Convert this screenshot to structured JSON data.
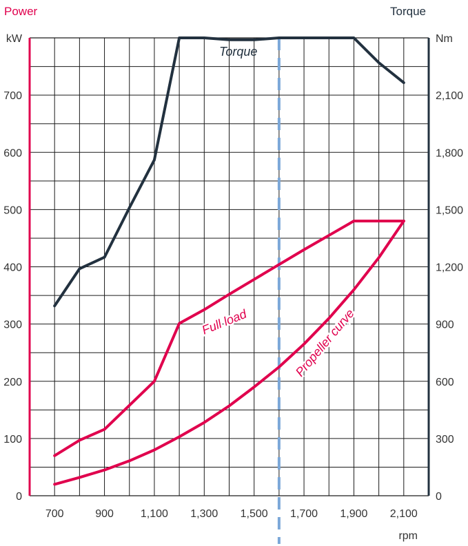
{
  "chart_data": {
    "type": "line",
    "left_axis_title": "Power",
    "right_axis_title": "Torque",
    "left_unit": "kW",
    "right_unit": "Nm",
    "x_unit": "rpm",
    "x_ticks": [
      "700",
      "900",
      "1,100",
      "1,300",
      "1,500",
      "1,700",
      "1,900",
      "2,100"
    ],
    "left_ticks": [
      "0",
      "100",
      "200",
      "300",
      "400",
      "500",
      "600",
      "700"
    ],
    "right_ticks": [
      "0",
      "300",
      "600",
      "900",
      "1,200",
      "1,500",
      "1,800",
      "2,100"
    ],
    "xlim": [
      600,
      2200
    ],
    "ylim_left": [
      0,
      800
    ],
    "ylim_right": [
      0,
      2400
    ],
    "grid": true,
    "colors": {
      "power": "#e0004d",
      "torque": "#22313f",
      "marker": "#7ba7d8"
    },
    "marker_line_x": 1600,
    "series": [
      {
        "key": "full-load",
        "name": "Full load",
        "axis": "left",
        "color": "#e0004d",
        "x": [
          700,
          800,
          900,
          1000,
          1100,
          1200,
          1300,
          1400,
          1500,
          1600,
          1700,
          1800,
          1900,
          2000,
          2100
        ],
        "y": [
          70,
          97,
          116,
          158,
          200,
          301,
          325,
          352,
          378,
          404,
          430,
          455,
          480,
          480,
          480
        ]
      },
      {
        "key": "propeller-curve",
        "name": "Propeller curve",
        "axis": "left",
        "color": "#e0004d",
        "x": [
          700,
          800,
          900,
          1000,
          1100,
          1200,
          1300,
          1400,
          1500,
          1600,
          1700,
          1800,
          1900,
          2000,
          2100
        ],
        "y": [
          20,
          32,
          45,
          61,
          80,
          103,
          128,
          157,
          190,
          225,
          265,
          310,
          360,
          416,
          480
        ]
      },
      {
        "key": "torque",
        "name": "Torque",
        "axis": "right",
        "color": "#22313f",
        "x": [
          700,
          800,
          900,
          1000,
          1100,
          1200,
          1300,
          1400,
          1500,
          1600,
          1700,
          1800,
          1900,
          2000,
          2100
        ],
        "y": [
          995,
          1190,
          1250,
          1510,
          1760,
          2400,
          2400,
          2390,
          2390,
          2400,
          2400,
          2400,
          2400,
          2270,
          2165
        ]
      }
    ]
  }
}
